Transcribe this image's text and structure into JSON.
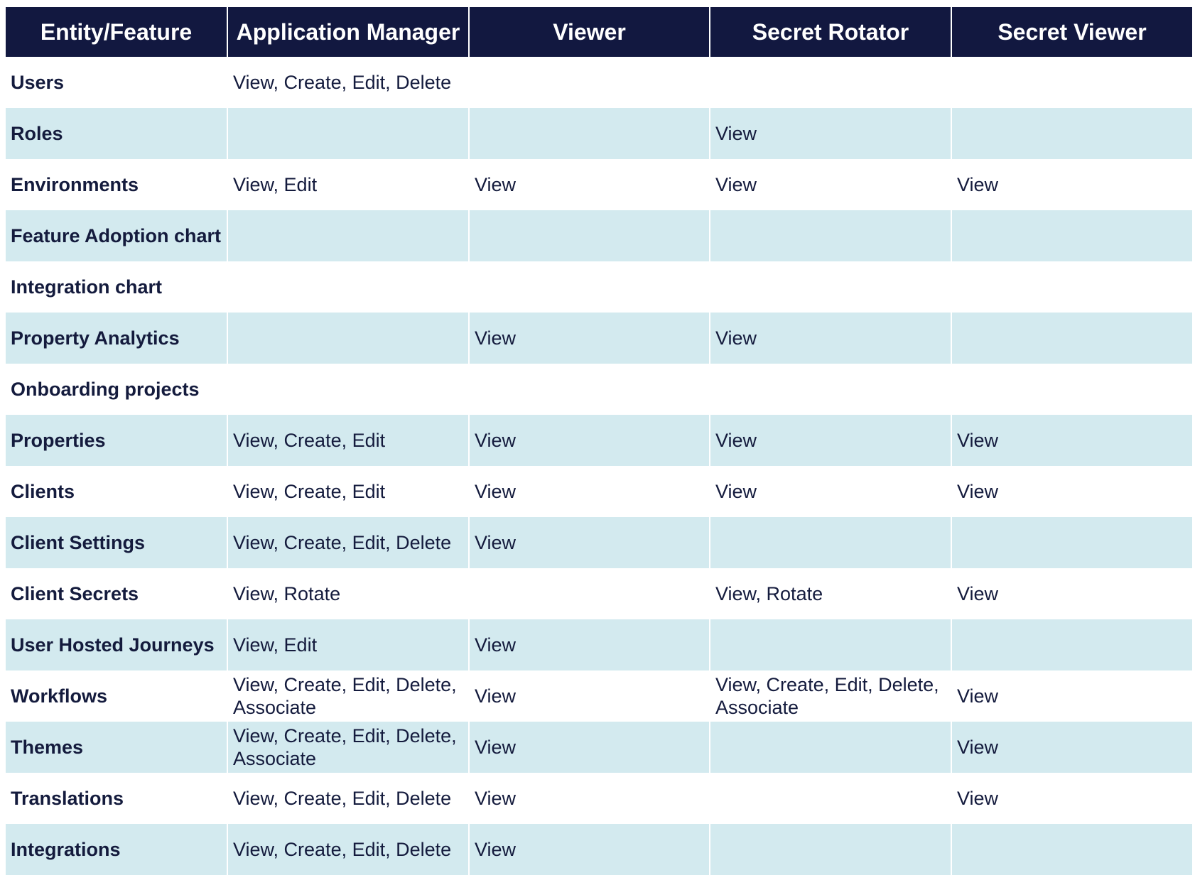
{
  "table": {
    "headers": [
      "Entity/Feature",
      "Application Manager",
      "Viewer",
      "Secret Rotator",
      "Secret Viewer"
    ],
    "rows": [
      [
        "Users",
        "View, Create, Edit, Delete",
        "",
        "",
        ""
      ],
      [
        "Roles",
        "",
        "",
        "View",
        ""
      ],
      [
        "Environments",
        "View, Edit",
        "View",
        "View",
        "View"
      ],
      [
        "Feature Adoption chart",
        "",
        "",
        "",
        ""
      ],
      [
        "Integration chart",
        "",
        "",
        "",
        ""
      ],
      [
        "Property Analytics",
        "",
        "View",
        "View",
        ""
      ],
      [
        "Onboarding projects",
        "",
        "",
        "",
        ""
      ],
      [
        "Properties",
        "View, Create, Edit",
        "View",
        "View",
        "View"
      ],
      [
        "Clients",
        "View, Create, Edit",
        "View",
        "View",
        "View"
      ],
      [
        "Client Settings",
        "View, Create, Edit, Delete",
        "View",
        "",
        ""
      ],
      [
        "Client Secrets",
        "View, Rotate",
        "",
        "View, Rotate",
        "View"
      ],
      [
        "User Hosted Journeys",
        "View, Edit",
        "View",
        "",
        ""
      ],
      [
        "Workflows",
        "View, Create, Edit, Delete, Associate",
        "View",
        "View, Create, Edit, Delete, Associate",
        "View"
      ],
      [
        "Themes",
        "View, Create, Edit, Delete, Associate",
        "View",
        "",
        "View"
      ],
      [
        "Translations",
        "View, Create, Edit, Delete",
        "View",
        "",
        "View"
      ],
      [
        "Integrations",
        "View, Create, Edit, Delete",
        "View",
        "",
        ""
      ]
    ]
  },
  "colors": {
    "header_bg": "#121840",
    "header_text": "#ffffff",
    "stripe_bg": "#d3eaef",
    "body_text": "#141b3d"
  }
}
